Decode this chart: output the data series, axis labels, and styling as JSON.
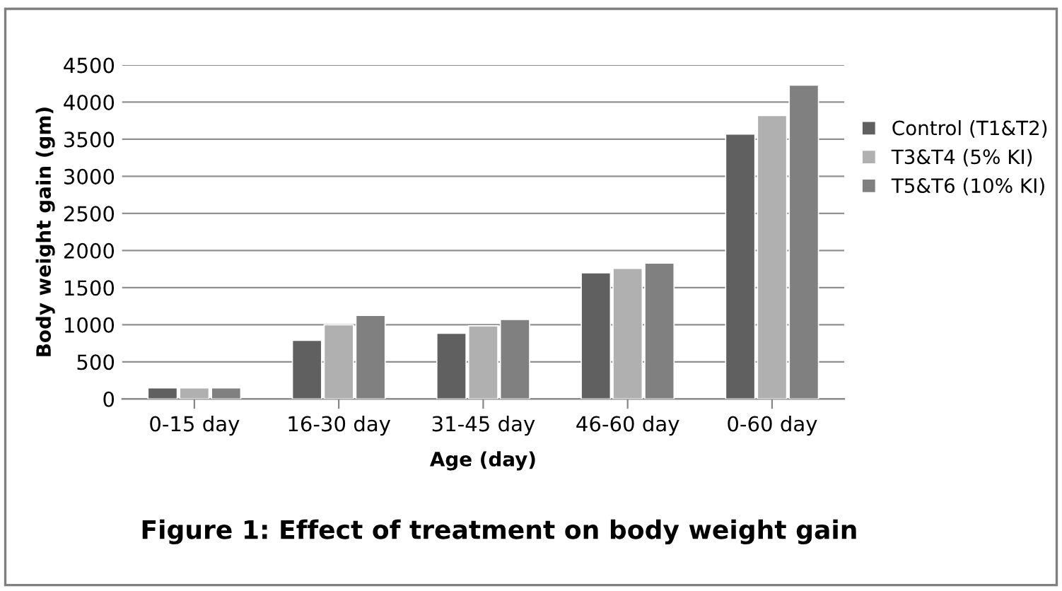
{
  "chart_data": {
    "type": "bar",
    "title": "Figure 1: Effect of treatment on body weight gain",
    "xlabel": "Age (day)",
    "ylabel": "Body weight gain (gm)",
    "categories": [
      "0-15 day",
      "16-30 day",
      "31-45 day",
      "46-60 day",
      "0-60 day"
    ],
    "series": [
      {
        "name": "Control (T1&T2)",
        "color": "#606060",
        "values": [
          150,
          790,
          885,
          1700,
          3570
        ]
      },
      {
        "name": "T3&T4 (5% KI)",
        "color": "#b0b0b0",
        "values": [
          150,
          1000,
          985,
          1760,
          3820
        ]
      },
      {
        "name": "T5&T6 (10% KI)",
        "color": "#808080",
        "values": [
          150,
          1125,
          1070,
          1830,
          4230
        ]
      }
    ],
    "ylim": [
      0,
      4500
    ],
    "yticks": [
      0,
      500,
      1000,
      1500,
      2000,
      2500,
      3000,
      3500,
      4000,
      4500
    ],
    "grid": "y",
    "legend": "right"
  }
}
